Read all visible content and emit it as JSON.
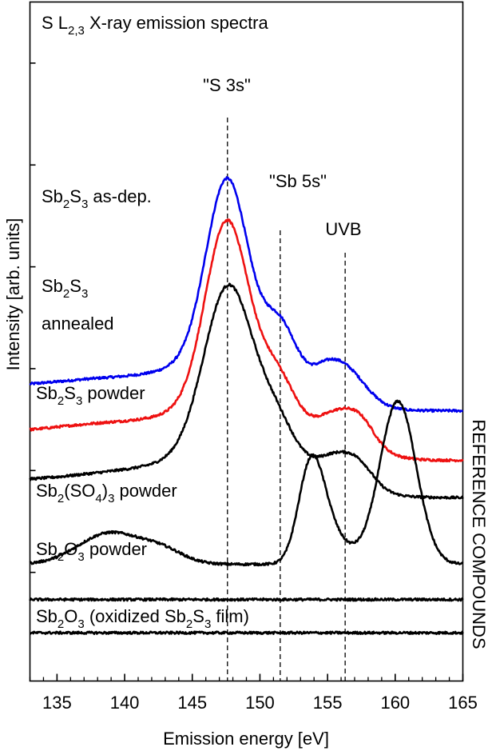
{
  "chart_data": {
    "type": "line",
    "title": "S L2,3 X-ray emission spectra",
    "title_parts": {
      "main": "S L",
      "sub": "2,3",
      "rest": " X-ray emission spectra"
    },
    "xlabel": "Emission energy [eV]",
    "ylabel": "Intensity [arb. units]",
    "side_label": "REFERENCE COMPOUNDS",
    "xlim": [
      133,
      165
    ],
    "ylim": [
      0,
      100
    ],
    "x_ticks": [
      135,
      140,
      145,
      150,
      155,
      160,
      165
    ],
    "x_tick_labels": [
      "135",
      "140",
      "145",
      "150",
      "155",
      "160",
      "165"
    ],
    "y_ticks_minor": [
      16,
      31,
      46,
      61,
      76,
      91
    ],
    "vlines": [
      {
        "x": 147.6,
        "label": "\"S 3s\""
      },
      {
        "x": 151.5,
        "label": "\"Sb 5s\""
      },
      {
        "x": 156.3,
        "label": "UVB"
      }
    ],
    "series": [
      {
        "name": "Sb2S3 as-dep.",
        "color": "#0000ee",
        "label_parts": [
          [
            "Sb",
            ""
          ],
          [
            "2",
            "sub"
          ],
          [
            "S",
            ""
          ],
          [
            "3",
            "sub"
          ],
          [
            " as-dep.",
            ""
          ]
        ],
        "baseline": 43.3,
        "peaks": [
          [
            147.6,
            27.0,
            1.55
          ],
          [
            147.0,
            3.5,
            3.2
          ],
          [
            151.5,
            8.0,
            1.2
          ],
          [
            156.3,
            3.7,
            1.5
          ],
          [
            154.8,
            1.5,
            1.0
          ],
          [
            139.5,
            1.3,
            4.5
          ]
        ],
        "tail_start": 157.5,
        "tail_width": 1.0,
        "tail_end_level": -3.5,
        "rise_start": 133,
        "rise_level": 0
      },
      {
        "name": "Sb2S3 annealed",
        "color": "#ee1111",
        "label_parts": [
          [
            "Sb",
            ""
          ],
          [
            "2",
            "sub"
          ],
          [
            "S",
            ""
          ],
          [
            "3",
            "sub"
          ]
        ],
        "label2": "annealed",
        "baseline": 36.5,
        "peaks": [
          [
            147.6,
            27.5,
            1.6
          ],
          [
            147.0,
            3.5,
            3.2
          ],
          [
            151.3,
            7.0,
            1.3
          ],
          [
            156.0,
            3.5,
            1.5
          ],
          [
            157.6,
            1.6,
            0.9
          ],
          [
            139.5,
            1.5,
            4.5
          ]
        ],
        "tail_start": 158.5,
        "tail_width": 1.0,
        "tail_end_level": -4.0,
        "rise_start": 133,
        "rise_level": 0
      },
      {
        "name": "Sb2S3 powder",
        "color": "#000000",
        "label_parts": [
          [
            "Sb",
            ""
          ],
          [
            "2",
            "sub"
          ],
          [
            "S",
            ""
          ],
          [
            "3",
            "sub"
          ],
          [
            " powder",
            ""
          ]
        ],
        "baseline": 29.5,
        "peaks": [
          [
            147.7,
            25.0,
            1.8
          ],
          [
            147.0,
            3.5,
            3.5
          ],
          [
            151.3,
            6.5,
            1.4
          ],
          [
            155.8,
            4.0,
            1.6
          ],
          [
            157.5,
            1.6,
            1.0
          ],
          [
            140.0,
            1.2,
            4.0
          ]
        ],
        "tail_start": 158.0,
        "tail_width": 1.2,
        "tail_end_level": -2.5,
        "rise_start": 133,
        "rise_level": 0
      },
      {
        "name": "Sb2(SO4)3 powder",
        "color": "#000000",
        "label_parts": [
          [
            "Sb",
            ""
          ],
          [
            "2",
            "sub"
          ],
          [
            "(SO",
            ""
          ],
          [
            "4",
            "sub"
          ],
          [
            ")",
            ""
          ],
          [
            "3",
            "sub"
          ],
          [
            " powder",
            ""
          ]
        ],
        "baseline": 17.2,
        "peaks": [
          [
            138.9,
            4.6,
            2.3
          ],
          [
            142.8,
            1.8,
            1.6
          ],
          [
            153.7,
            13.5,
            0.9
          ],
          [
            154.8,
            4.0,
            0.9
          ],
          [
            156.0,
            2.2,
            1.2
          ],
          [
            160.2,
            24.0,
            1.35
          ]
        ],
        "tail_start": 170,
        "tail_width": 1.0,
        "tail_end_level": 0,
        "rise_start": 133,
        "rise_level": 0
      },
      {
        "name": "Sb2O3 powder",
        "color": "#000000",
        "label_parts": [
          [
            "Sb",
            ""
          ],
          [
            "2",
            "sub"
          ],
          [
            "O",
            ""
          ],
          [
            "3",
            "sub"
          ],
          [
            " powder",
            ""
          ]
        ],
        "baseline": 12.0,
        "peaks": [],
        "tail_start": 170,
        "tail_width": 1.0,
        "tail_end_level": 0,
        "rise_start": 133,
        "rise_level": 0
      },
      {
        "name": "Sb2O3 (oxidized Sb2S3 film)",
        "color": "#000000",
        "label_parts": [
          [
            "Sb",
            ""
          ],
          [
            "2",
            "sub"
          ],
          [
            "O",
            ""
          ],
          [
            "3",
            "sub"
          ],
          [
            " (oxidized Sb",
            ""
          ],
          [
            "2",
            "sub"
          ],
          [
            "S",
            ""
          ],
          [
            "3",
            "sub"
          ],
          [
            " film)",
            ""
          ]
        ],
        "baseline": 7.1,
        "peaks": [],
        "tail_start": 170,
        "tail_width": 1.0,
        "tail_end_level": 0,
        "rise_start": 133,
        "rise_level": 0
      }
    ]
  }
}
